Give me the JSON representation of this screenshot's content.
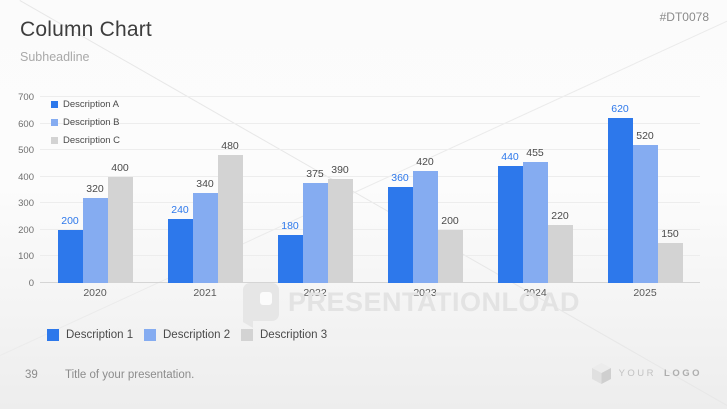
{
  "slide": {
    "code": "#DT0078",
    "title": "Column Chart",
    "subtitle": "Subheadline",
    "watermark_text": "PRESENTATIONLOAD",
    "footer": {
      "page_number": "39",
      "title": "Title of your presentation."
    },
    "logo": {
      "word1": "YOUR",
      "word2": "LOGO"
    }
  },
  "chart_data": {
    "type": "bar",
    "title": "",
    "xlabel": "",
    "ylabel": "",
    "categories": [
      "2020",
      "2021",
      "2022",
      "2023",
      "2024",
      "2025"
    ],
    "series": [
      {
        "name": "Description A",
        "bottom_legend_name": "Description 1",
        "color": "#2D78EB",
        "label_color": "#2D78EB",
        "values": [
          200,
          240,
          180,
          360,
          440,
          620
        ]
      },
      {
        "name": "Description B",
        "bottom_legend_name": "Description 2",
        "color": "#85ACF1",
        "label_color": "#4a4a4a",
        "values": [
          320,
          340,
          375,
          420,
          455,
          520
        ]
      },
      {
        "name": "Description C",
        "bottom_legend_name": "Description 3",
        "color": "#D3D3D3",
        "label_color": "#4a4a4a",
        "values": [
          400,
          480,
          390,
          200,
          220,
          150
        ]
      }
    ],
    "ylim": [
      0,
      700
    ],
    "ytick_step": 100,
    "grid": true,
    "data_labels": true,
    "legend_positions": {
      "top": "inside-top-left",
      "bottom": "below-chart"
    }
  }
}
